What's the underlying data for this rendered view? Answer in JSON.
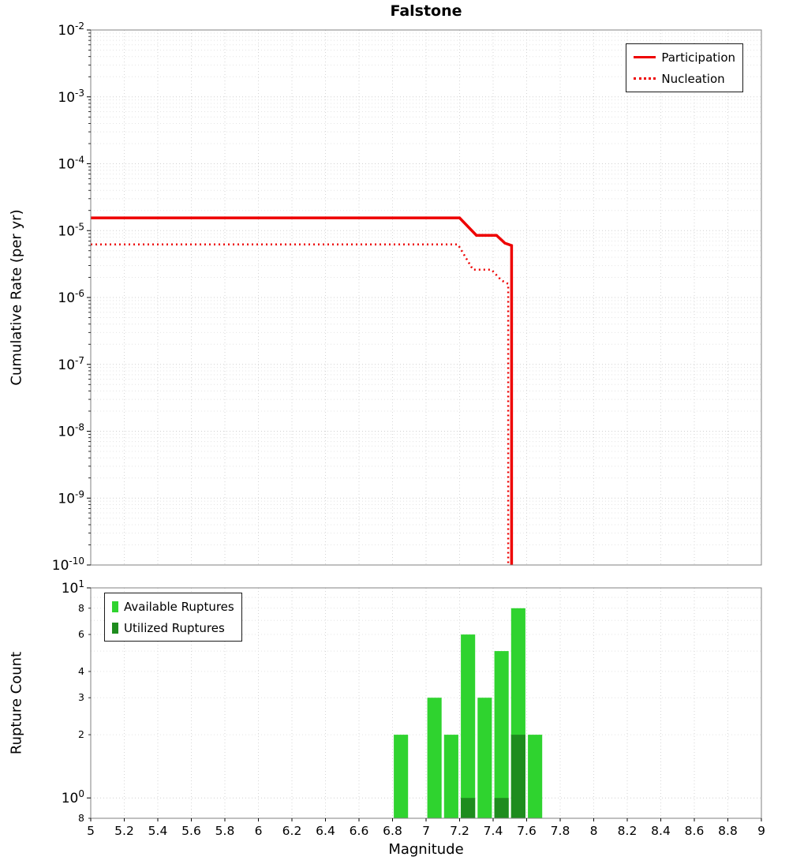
{
  "title": "Falstone",
  "chart_data": [
    {
      "type": "line",
      "title": "Falstone",
      "xlabel": "",
      "ylabel": "Cumulative Rate (per yr)",
      "xlim": [
        5,
        9
      ],
      "y_scale": "log",
      "ylim": [
        1e-10,
        0.01
      ],
      "y_tick_exponents": [
        -2,
        -3,
        -4,
        -5,
        -6,
        -7,
        -8,
        -9,
        -10
      ],
      "grid": true,
      "legend_position": "top-right",
      "series": [
        {
          "name": "Participation",
          "style": "solid",
          "color": "#ee0000",
          "points": [
            [
              5,
              1.55e-05
            ],
            [
              7.2,
              1.55e-05
            ],
            [
              7.3,
              8.5e-06
            ],
            [
              7.42,
              8.5e-06
            ],
            [
              7.47,
              6.5e-06
            ],
            [
              7.51,
              6e-06
            ],
            [
              7.51,
              1e-10
            ]
          ]
        },
        {
          "name": "Nucleation",
          "style": "dotted",
          "color": "#ee0000",
          "points": [
            [
              5,
              6.2e-06
            ],
            [
              7.19,
              6.2e-06
            ],
            [
              7.28,
              2.6e-06
            ],
            [
              7.39,
              2.6e-06
            ],
            [
              7.45,
              1.8e-06
            ],
            [
              7.49,
              1.6e-06
            ],
            [
              7.49,
              1e-10
            ]
          ]
        }
      ]
    },
    {
      "type": "bar",
      "xlabel": "Magnitude",
      "ylabel": "Rupture Count",
      "xlim": [
        5,
        9
      ],
      "y_scale": "log",
      "ylim": [
        0.8,
        10
      ],
      "grid": true,
      "x_ticks": [
        5,
        5.2,
        5.4,
        5.6,
        5.8,
        6,
        6.2,
        6.4,
        6.6,
        6.8,
        7,
        7.2,
        7.4,
        7.6,
        7.8,
        8,
        8.2,
        8.4,
        8.6,
        8.8,
        9
      ],
      "x_tick_labels": [
        "5",
        "5.2",
        "5.4",
        "5.6",
        "5.8",
        "6",
        "6.2",
        "6.4",
        "6.6",
        "6.8",
        "7",
        "7.2",
        "7.4",
        "7.6",
        "7.8",
        "8",
        "8.2",
        "8.4",
        "8.6",
        "8.8",
        "9"
      ],
      "y_major_ticks": [
        {
          "value": 10,
          "exponent": 1
        },
        {
          "value": 1,
          "exponent": 0
        }
      ],
      "y_minor_ticks": [
        {
          "value": 8,
          "label": "8"
        },
        {
          "value": 6,
          "label": "6"
        },
        {
          "value": 4,
          "label": "4"
        },
        {
          "value": 3,
          "label": "3"
        },
        {
          "value": 2,
          "label": "2"
        },
        {
          "value": 0.8,
          "label": "8"
        }
      ],
      "bar_width_mag": 0.085,
      "legend_position": "top-left",
      "series": [
        {
          "name": "Available Ruptures",
          "color": "#2fd32f",
          "bars": [
            {
              "x": 6.85,
              "count": 2
            },
            {
              "x": 7.05,
              "count": 3
            },
            {
              "x": 7.15,
              "count": 2
            },
            {
              "x": 7.25,
              "count": 6
            },
            {
              "x": 7.35,
              "count": 3
            },
            {
              "x": 7.45,
              "count": 5
            },
            {
              "x": 7.55,
              "count": 8
            },
            {
              "x": 7.65,
              "count": 2
            }
          ]
        },
        {
          "name": "Utilized Ruptures",
          "color": "#1e8c1e",
          "bars": [
            {
              "x": 7.25,
              "count": 1
            },
            {
              "x": 7.45,
              "count": 1
            },
            {
              "x": 7.55,
              "count": 2
            }
          ]
        }
      ]
    }
  ]
}
